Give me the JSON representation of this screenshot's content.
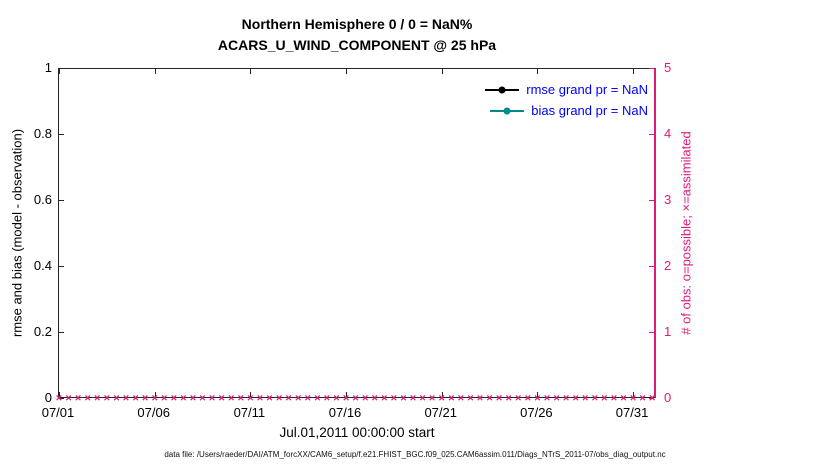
{
  "title": {
    "line1": "Northern Hemisphere 0 / 0 = NaN%",
    "line2": "ACARS_U_WIND_COMPONENT @ 25 hPa"
  },
  "axes": {
    "left": {
      "label": "rmse and bias (model - observation)",
      "ticks": [
        "0",
        "0.2",
        "0.4",
        "0.6",
        "0.8",
        "1"
      ],
      "color": "#000000"
    },
    "right": {
      "label": "# of obs: o=possible; ×=assimilated",
      "ticks": [
        "0",
        "1",
        "2",
        "3",
        "4",
        "5"
      ],
      "color": "#dd1c77"
    },
    "x": {
      "tick_labels": [
        "07/01",
        "07/06",
        "07/11",
        "07/16",
        "07/21",
        "07/26",
        "07/31"
      ],
      "tick_days": [
        0,
        5,
        10,
        15,
        20,
        25,
        30
      ],
      "range_days": [
        0,
        31.25
      ],
      "label": "Jul.01,2011 00:00:00 start"
    }
  },
  "legend": {
    "text_color": "#0000ff",
    "entries": [
      {
        "label": "rmse grand pr = NaN",
        "line_color": "#000000"
      },
      {
        "label": "bias grand pr = NaN",
        "line_color": "#008b8b"
      }
    ]
  },
  "footer": "data file: /Users/raeder/DAI/ATM_forcXX/CAM6_setup/f.e21.FHIST_BGC.f09_025.CAM6assim.011/Diags_NTrS_2011-07/obs_diag_output.nc",
  "chart_data": {
    "type": "line",
    "title": "Northern Hemisphere 0 / 0 = NaN% — ACARS_U_WIND_COMPONENT @ 25 hPa",
    "xlabel": "Jul.01,2011 00:00:00 start",
    "ylabel_left": "rmse and bias (model - observation)",
    "ylabel_right": "# of obs: o=possible; ×=assimilated",
    "x_tick_labels": [
      "07/01",
      "07/06",
      "07/11",
      "07/16",
      "07/21",
      "07/26",
      "07/31"
    ],
    "ylim_left": [
      0,
      1
    ],
    "ylim_right": [
      0,
      5
    ],
    "grid": false,
    "legend_position": "upper right inside",
    "series": [
      {
        "name": "rmse",
        "grand_value": "NaN",
        "points": []
      },
      {
        "name": "bias",
        "grand_value": "NaN",
        "points": []
      },
      {
        "name": "possible_obs",
        "marker": "o",
        "axis": "right",
        "constant_value": 0,
        "n_markers": 63
      },
      {
        "name": "assimilated_obs",
        "marker": "×",
        "axis": "right",
        "constant_value": 0,
        "n_markers": 63
      }
    ],
    "summary": "0 of 0 observations used; rmse and bias are NaN (no lines plotted); possible and assimilated obs counts are 0 at every time step along the bottom axis"
  }
}
